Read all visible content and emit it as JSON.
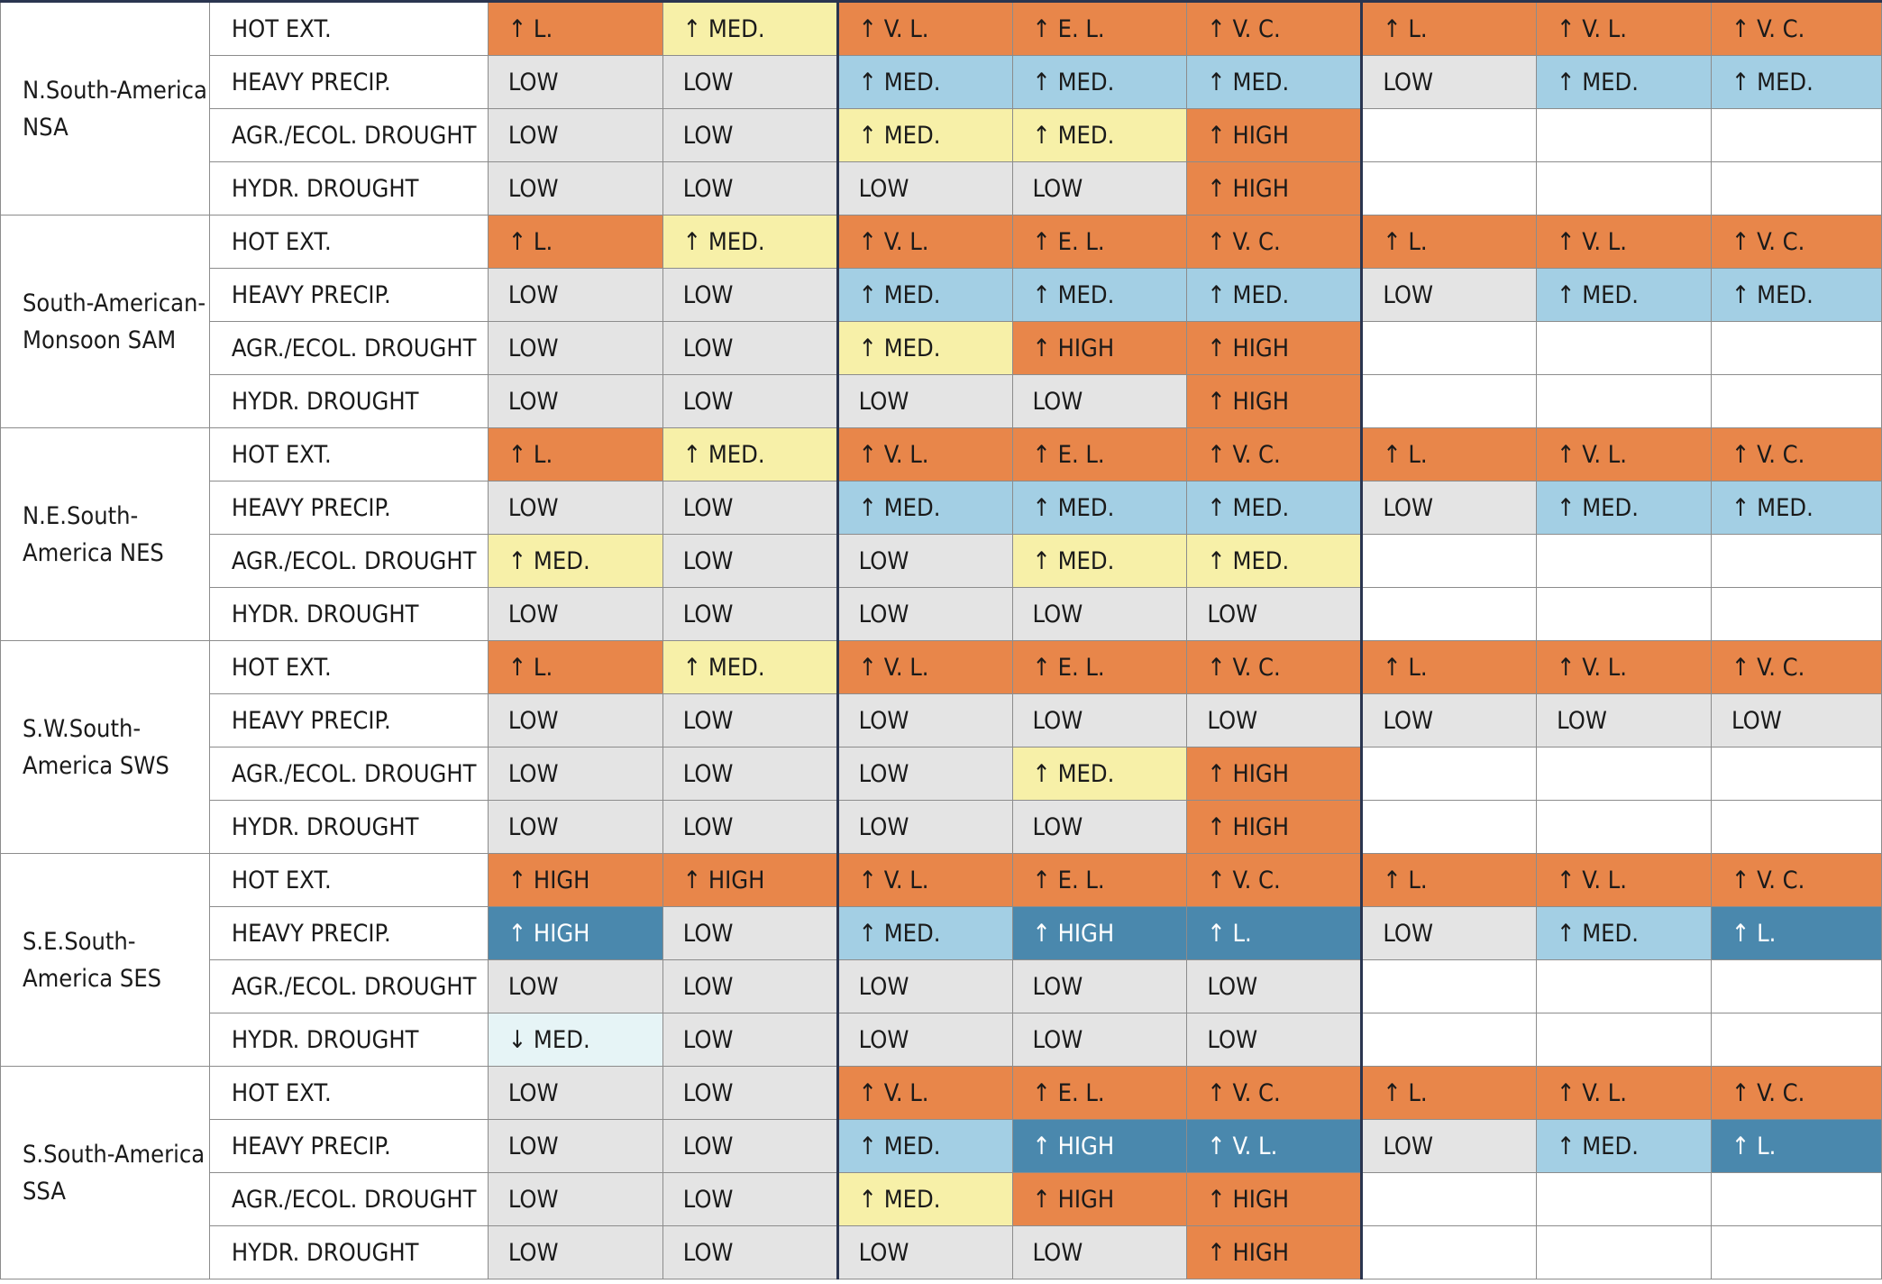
{
  "colors": {
    "very_high": "#e8864a",
    "medium": "#f7f0a8",
    "low": "#e4e4e4",
    "precip_medium": "#a3cfe4",
    "precip_high": "#4a88ad",
    "decrease": "#e6f4f6",
    "blank": "#ffffff",
    "divider": "#2a3550"
  },
  "regions": [
    {
      "name": "N.South-America NSA",
      "rows": [
        {
          "hazard": "HOT EXT.",
          "cells": [
            "↑ L.",
            "↑ MED.",
            "↑ V. L.",
            "↑ E. L.",
            "↑ V. C.",
            "↑ L.",
            "↑ V. L.",
            "↑ V. C."
          ]
        },
        {
          "hazard": "HEAVY PRECIP.",
          "cells": [
            "LOW",
            "LOW",
            "↑ MED.",
            "↑ MED.",
            "↑ MED.",
            "LOW",
            "↑ MED.",
            "↑ MED."
          ]
        },
        {
          "hazard": "AGR./ECOL. DROUGHT",
          "cells": [
            "LOW",
            "LOW",
            "↑ MED.",
            "↑ MED.",
            "↑ HIGH",
            "",
            "",
            ""
          ]
        },
        {
          "hazard": "HYDR. DROUGHT",
          "cells": [
            "LOW",
            "LOW",
            "LOW",
            "LOW",
            "↑ HIGH",
            "",
            "",
            ""
          ]
        }
      ]
    },
    {
      "name": "South-American-Monsoon SAM",
      "rows": [
        {
          "hazard": "HOT EXT.",
          "cells": [
            "↑ L.",
            "↑ MED.",
            "↑ V. L.",
            "↑ E. L.",
            "↑ V. C.",
            "↑ L.",
            "↑ V. L.",
            "↑ V. C."
          ]
        },
        {
          "hazard": "HEAVY PRECIP.",
          "cells": [
            "LOW",
            "LOW",
            "↑ MED.",
            "↑ MED.",
            "↑ MED.",
            "LOW",
            "↑ MED.",
            "↑ MED."
          ]
        },
        {
          "hazard": "AGR./ECOL. DROUGHT",
          "cells": [
            "LOW",
            "LOW",
            "↑ MED.",
            "↑ HIGH",
            "↑ HIGH",
            "",
            "",
            ""
          ]
        },
        {
          "hazard": "HYDR. DROUGHT",
          "cells": [
            "LOW",
            "LOW",
            "LOW",
            "LOW",
            "↑ HIGH",
            "",
            "",
            ""
          ]
        }
      ]
    },
    {
      "name": "N.E.South-America NES",
      "rows": [
        {
          "hazard": "HOT EXT.",
          "cells": [
            "↑ L.",
            "↑ MED.",
            "↑ V. L.",
            "↑ E. L.",
            "↑ V. C.",
            "↑ L.",
            "↑ V. L.",
            "↑ V. C."
          ]
        },
        {
          "hazard": "HEAVY PRECIP.",
          "cells": [
            "LOW",
            "LOW",
            "↑ MED.",
            "↑ MED.",
            "↑ MED.",
            "LOW",
            "↑ MED.",
            "↑ MED."
          ]
        },
        {
          "hazard": "AGR./ECOL. DROUGHT",
          "cells": [
            "↑ MED.",
            "LOW",
            "LOW",
            "↑ MED.",
            "↑ MED.",
            "",
            "",
            ""
          ]
        },
        {
          "hazard": "HYDR. DROUGHT",
          "cells": [
            "LOW",
            "LOW",
            "LOW",
            "LOW",
            "LOW",
            "",
            "",
            ""
          ]
        }
      ]
    },
    {
      "name": "S.W.South-America SWS",
      "rows": [
        {
          "hazard": "HOT EXT.",
          "cells": [
            "↑ L.",
            "↑ MED.",
            "↑ V. L.",
            "↑ E. L.",
            "↑ V. C.",
            "↑ L.",
            "↑ V. L.",
            "↑ V. C."
          ]
        },
        {
          "hazard": "HEAVY PRECIP.",
          "cells": [
            "LOW",
            "LOW",
            "LOW",
            "LOW",
            "LOW",
            "LOW",
            "LOW",
            "LOW"
          ]
        },
        {
          "hazard": "AGR./ECOL. DROUGHT",
          "cells": [
            "LOW",
            "LOW",
            "LOW",
            "↑ MED.",
            "↑ HIGH",
            "",
            "",
            ""
          ]
        },
        {
          "hazard": "HYDR. DROUGHT",
          "cells": [
            "LOW",
            "LOW",
            "LOW",
            "LOW",
            "↑ HIGH",
            "",
            "",
            ""
          ]
        }
      ]
    },
    {
      "name": "S.E.South-America SES",
      "rows": [
        {
          "hazard": "HOT EXT.",
          "cells": [
            "↑ HIGH",
            "↑ HIGH",
            "↑ V. L.",
            "↑ E. L.",
            "↑ V. C.",
            "↑ L.",
            "↑ V. L.",
            "↑ V. C."
          ]
        },
        {
          "hazard": "HEAVY PRECIP.",
          "cells": [
            "↑ HIGH",
            "LOW",
            "↑ MED.",
            "↑ HIGH",
            "↑ L.",
            "LOW",
            "↑ MED.",
            "↑ L."
          ]
        },
        {
          "hazard": "AGR./ECOL. DROUGHT",
          "cells": [
            "LOW",
            "LOW",
            "LOW",
            "LOW",
            "LOW",
            "",
            "",
            ""
          ]
        },
        {
          "hazard": "HYDR. DROUGHT",
          "cells": [
            "↓ MED.",
            "LOW",
            "LOW",
            "LOW",
            "LOW",
            "",
            "",
            ""
          ]
        }
      ]
    },
    {
      "name": "S.South-America SSA",
      "rows": [
        {
          "hazard": "HOT EXT.",
          "cells": [
            "LOW",
            "LOW",
            "↑ V. L.",
            "↑ E. L.",
            "↑ V. C.",
            "↑ L.",
            "↑ V. L.",
            "↑ V. C."
          ]
        },
        {
          "hazard": "HEAVY PRECIP.",
          "cells": [
            "LOW",
            "LOW",
            "↑ MED.",
            "↑ HIGH",
            "↑ V. L.",
            "LOW",
            "↑ MED.",
            "↑ L."
          ]
        },
        {
          "hazard": "AGR./ECOL. DROUGHT",
          "cells": [
            "LOW",
            "LOW",
            "↑ MED.",
            "↑ HIGH",
            "↑ HIGH",
            "",
            "",
            ""
          ]
        },
        {
          "hazard": "HYDR. DROUGHT",
          "cells": [
            "LOW",
            "LOW",
            "LOW",
            "LOW",
            "↑ HIGH",
            "",
            "",
            ""
          ]
        }
      ]
    }
  ]
}
